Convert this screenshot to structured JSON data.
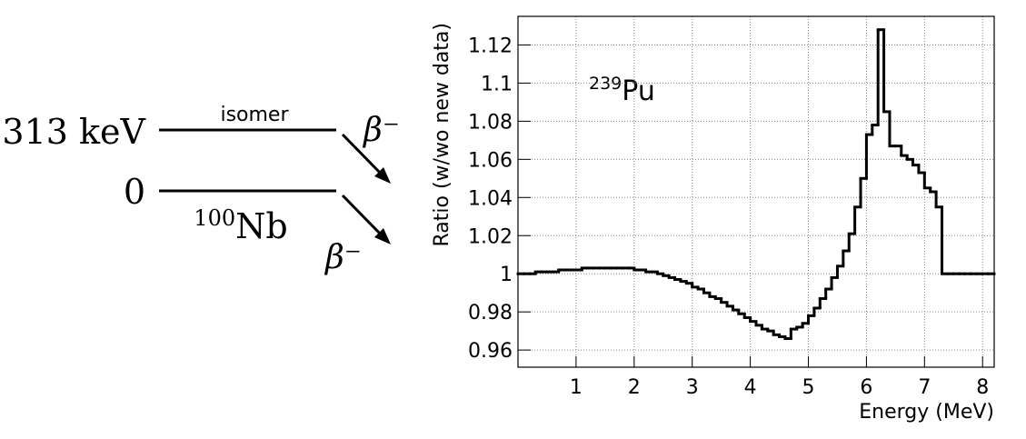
{
  "diagram": {
    "level_energy": "313 keV",
    "level_label": "isomer",
    "decay_upper": "β⁻",
    "ground_energy": "0",
    "nuclide": {
      "mass": "100",
      "symbol": "Nb"
    },
    "decay_lower": "β⁻"
  },
  "chart_data": {
    "type": "histogram",
    "annotation": {
      "mass": "239",
      "symbol": "Pu"
    },
    "x_label": "Energy (MeV)",
    "y_label": "Ratio (w/wo new data)",
    "bins": [
      0,
      0.1,
      0.2,
      0.3,
      0.4,
      0.5,
      0.6,
      0.7,
      0.8,
      0.9,
      1,
      1.1,
      1.2,
      1.3,
      1.4,
      1.5,
      1.6,
      1.7,
      1.8,
      1.9,
      2,
      2.1,
      2.2,
      2.3,
      2.4,
      2.5,
      2.6,
      2.7,
      2.8,
      2.9,
      3,
      3.1,
      3.2,
      3.3,
      3.4,
      3.5,
      3.6,
      3.7,
      3.8,
      3.9,
      4,
      4.1,
      4.2,
      4.3,
      4.4,
      4.5,
      4.6,
      4.7,
      4.8,
      4.9,
      5,
      5.1,
      5.2,
      5.3,
      5.4,
      5.5,
      5.6,
      5.7,
      5.8,
      5.9,
      6,
      6.1,
      6.2,
      6.3,
      6.4,
      6.5,
      6.6,
      6.7,
      6.8,
      6.9,
      7,
      7.1,
      7.2,
      7.3,
      7.4,
      7.5,
      7.6,
      7.7,
      7.8,
      7.9,
      8,
      8.1,
      8.2
    ],
    "values": [
      1.0,
      1.0,
      1.0,
      1.001,
      1.001,
      1.001,
      1.001,
      1.002,
      1.002,
      1.002,
      1.002,
      1.003,
      1.003,
      1.003,
      1.003,
      1.003,
      1.003,
      1.003,
      1.003,
      1.003,
      1.002,
      1.002,
      1.001,
      1.001,
      1.0,
      0.999,
      0.998,
      0.997,
      0.996,
      0.995,
      0.993,
      0.992,
      0.99,
      0.988,
      0.987,
      0.985,
      0.983,
      0.981,
      0.979,
      0.977,
      0.975,
      0.973,
      0.971,
      0.97,
      0.968,
      0.967,
      0.966,
      0.971,
      0.972,
      0.974,
      0.978,
      0.982,
      0.987,
      0.992,
      0.998,
      1.004,
      1.012,
      1.021,
      1.035,
      1.05,
      1.073,
      1.078,
      1.128,
      1.085,
      1.067,
      1.067,
      1.062,
      1.06,
      1.057,
      1.053,
      1.045,
      1.043,
      1.035,
      1.0,
      1.0,
      1.0,
      1.0,
      1.0,
      1.0,
      1.0,
      1.0,
      1.0
    ],
    "color": "#000000",
    "xlim": [
      0,
      8.2
    ],
    "ylim": [
      0.951,
      1.135
    ],
    "xticks": [
      1,
      2,
      3,
      4,
      5,
      6,
      7,
      8
    ],
    "yticks": [
      0.96,
      0.98,
      1,
      1.02,
      1.04,
      1.06,
      1.08,
      1.1,
      1.12
    ],
    "grid": true
  }
}
